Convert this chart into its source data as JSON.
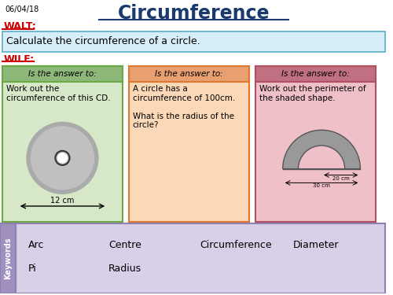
{
  "date": "06/04/18",
  "title": "Circumference",
  "walt_label": "WALT:",
  "walt_text": "Calculate the circumference of a circle.",
  "wilf_label": "WILF:",
  "box1_header": "Is the answer to:",
  "box1_body1": "Work out the\ncircumference of this CD.",
  "box1_measurement": "12 cm",
  "box2_header": "Is the answer to:",
  "box2_body": "A circle has a\ncircumference of 100cm.\n\nWhat is the radius of the\ncircle?",
  "box3_header": "Is the answer to:",
  "box3_body": "Work out the perimeter of\nthe shaded shape.",
  "box3_dim1": "20 cm",
  "box3_dim2": "30 cm",
  "keywords_label": "Keywords",
  "keywords": [
    "Arc",
    "Centre",
    "Circumference",
    "Diameter",
    "Pi",
    "Radius"
  ],
  "bg_color": "#ffffff",
  "title_color": "#1a3a6e",
  "walt_color": "#cc0000",
  "wilf_color": "#cc0000",
  "walt_bg": "#d6eef8",
  "walt_border": "#5aabcc",
  "box1_header_bg": "#8db87a",
  "box1_body_bg": "#d6e8c8",
  "box1_border": "#6aaa44",
  "box2_header_bg": "#e8a070",
  "box2_body_bg": "#fad8b8",
  "box2_border": "#e07830",
  "box3_header_bg": "#c07080",
  "box3_body_bg": "#f0c0c8",
  "box3_border": "#b05060",
  "kw_bg": "#d8d0e8",
  "kw_border": "#9080b0",
  "kw_tab_bg": "#a090c0",
  "cd_outer": "#aaaaaa",
  "arch_color": "#999999"
}
